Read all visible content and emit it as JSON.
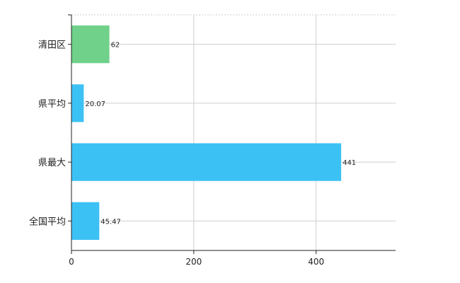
{
  "chart_data": {
    "type": "bar",
    "orientation": "horizontal",
    "categories": [
      "清田区",
      "県平均",
      "県最大",
      "全国平均"
    ],
    "values": [
      62,
      20.07,
      441,
      45.47
    ],
    "value_labels": [
      "62",
      "20.07",
      "441",
      "45.47"
    ],
    "bar_colors": [
      "#6fd18a",
      "#3cc1f5",
      "#3cc1f5",
      "#3cc1f5"
    ],
    "xlim": [
      0,
      530
    ],
    "x_ticks": [
      0,
      200,
      400
    ],
    "x_tick_labels": [
      "0",
      "200",
      "400"
    ],
    "grid": true,
    "title": "",
    "xlabel": "",
    "ylabel": ""
  }
}
